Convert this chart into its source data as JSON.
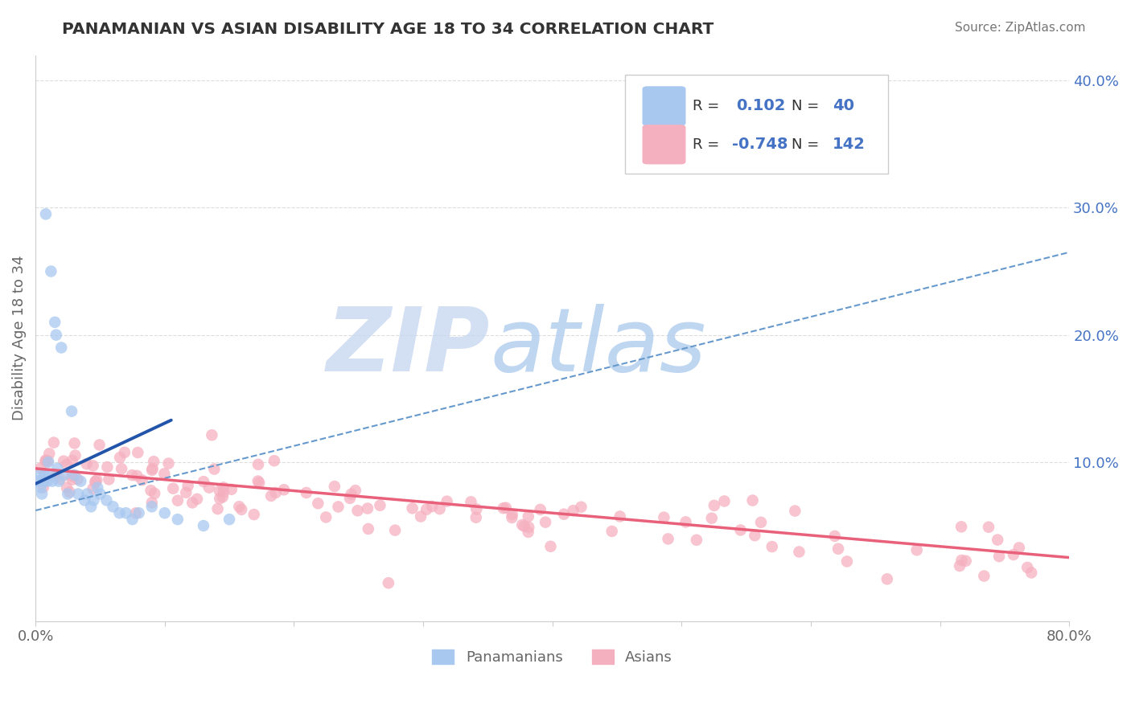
{
  "title": "PANAMANIAN VS ASIAN DISABILITY AGE 18 TO 34 CORRELATION CHART",
  "source": "Source: ZipAtlas.com",
  "ylabel": "Disability Age 18 to 34",
  "xlim": [
    0.0,
    0.8
  ],
  "ylim": [
    -0.025,
    0.42
  ],
  "xtick_positions": [
    0.0,
    0.1,
    0.2,
    0.3,
    0.4,
    0.5,
    0.6,
    0.7,
    0.8
  ],
  "xticklabels": [
    "0.0%",
    "",
    "",
    "",
    "",
    "",
    "",
    "",
    "80.0%"
  ],
  "yticks_right": [
    0.0,
    0.1,
    0.2,
    0.3,
    0.4
  ],
  "yticklabels_right": [
    "",
    "10.0%",
    "20.0%",
    "30.0%",
    "40.0%"
  ],
  "r_blue": "0.102",
  "n_blue": "40",
  "r_pink": "-0.748",
  "n_pink": "142",
  "blue_color": "#a8c8f0",
  "pink_color": "#f5b0c0",
  "blue_line_color": "#2255aa",
  "pink_line_color": "#e8607a",
  "dashed_line_color": "#6699cc",
  "grid_color": "#dddddd",
  "title_color": "#333333",
  "source_color": "#777777",
  "axis_color": "#cccccc",
  "tick_label_color": "#666666",
  "right_tick_color": "#4472c4",
  "legend_label_blue": "Panamanians",
  "legend_label_pink": "Asians",
  "legend_text_color": "#4472c4",
  "legend_text_dark": "#333333",
  "watermark_zip_color": "#c8d8f0",
  "watermark_atlas_color": "#b0ccee"
}
